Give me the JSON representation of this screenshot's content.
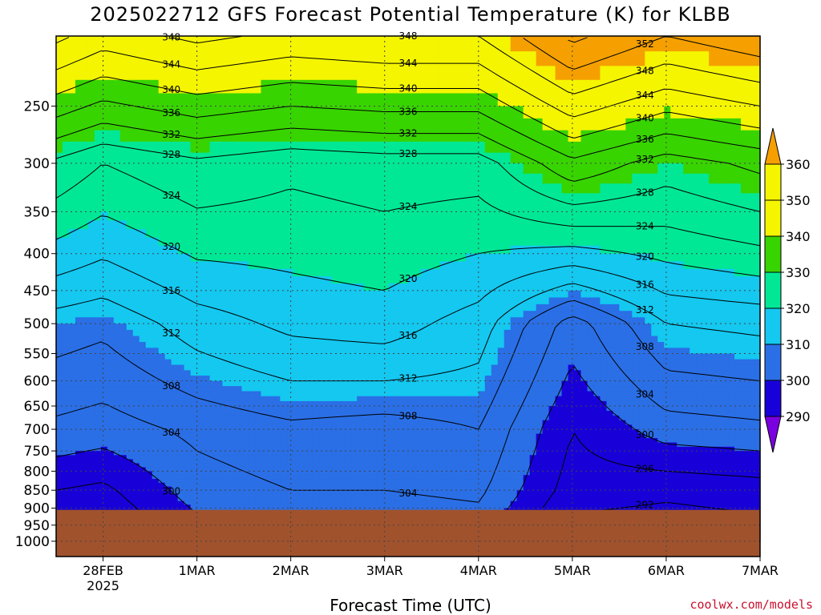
{
  "chart_data": {
    "type": "heatmap",
    "title": "2025022712 GFS Forecast Potential Temperature (K) for KLBB",
    "xlabel": "Forecast Time (UTC)",
    "ylabel": "",
    "credit": "coolwx.com/models",
    "x_ticks": [
      {
        "label": "28FEB",
        "sublabel": "2025"
      },
      {
        "label": "1MAR",
        "sublabel": ""
      },
      {
        "label": "2MAR",
        "sublabel": ""
      },
      {
        "label": "3MAR",
        "sublabel": ""
      },
      {
        "label": "4MAR",
        "sublabel": ""
      },
      {
        "label": "5MAR",
        "sublabel": ""
      },
      {
        "label": "6MAR",
        "sublabel": ""
      },
      {
        "label": "7MAR",
        "sublabel": ""
      }
    ],
    "y_ticks": [
      250,
      300,
      350,
      400,
      450,
      500,
      550,
      600,
      650,
      700,
      750,
      800,
      850,
      900,
      950,
      1000
    ],
    "y_scale": "log-pressure, inverted",
    "ylim": [
      200,
      1050
    ],
    "colorbar": {
      "levels": [
        290,
        300,
        310,
        320,
        330,
        340,
        350,
        360
      ],
      "colors": [
        "#7a00e0",
        "#1800d8",
        "#2a6fe6",
        "#14c8f0",
        "#00e896",
        "#38d400",
        "#f5f500",
        "#f5a000"
      ],
      "extend": "both"
    },
    "ground_color": "#a0522d",
    "contour_labels": [
      "348",
      "344",
      "340",
      "336",
      "332",
      "328",
      "324",
      "320",
      "316",
      "312",
      "308",
      "304",
      "300",
      "296",
      "292",
      "352"
    ],
    "theta_profiles": [
      {
        "time": "2025-02-27T12",
        "theta_300": 327,
        "theta_500": 310,
        "theta_700": 303,
        "theta_850": 296
      },
      {
        "time": "2025-02-28T00",
        "theta_300": 324,
        "theta_500": 309,
        "theta_700": 302,
        "theta_850": 295
      },
      {
        "time": "2025-03-01T00",
        "theta_300": 327,
        "theta_500": 314,
        "theta_700": 305,
        "theta_850": 302
      },
      {
        "time": "2025-03-02T00",
        "theta_300": 325,
        "theta_500": 317,
        "theta_700": 307,
        "theta_850": 304
      },
      {
        "time": "2025-03-03T00",
        "theta_300": 326,
        "theta_500": 318,
        "theta_700": 306,
        "theta_850": 304
      },
      {
        "time": "2025-03-04T00",
        "theta_300": 326,
        "theta_500": 314,
        "theta_700": 308,
        "theta_850": 305
      },
      {
        "time": "2025-03-05T00",
        "theta_300": 335,
        "theta_500": 302,
        "theta_700": 296,
        "theta_850": 294
      },
      {
        "time": "2025-03-06T00",
        "theta_300": 330,
        "theta_500": 312,
        "theta_700": 302,
        "theta_850": 293
      },
      {
        "time": "2025-03-07T00",
        "theta_300": 333,
        "theta_500": 313,
        "theta_700": 303,
        "theta_850": 294
      }
    ]
  }
}
